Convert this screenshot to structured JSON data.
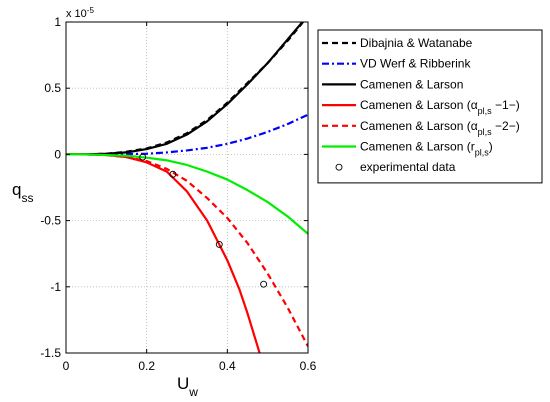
{
  "chart_data": {
    "type": "line",
    "xlabel": "U",
    "xlabel_sub": "w",
    "ylabel": "q",
    "ylabel_sub": "ss",
    "exponent_label": {
      "prefix": "x 10",
      "power": "-5"
    },
    "xlim": [
      0,
      0.6
    ],
    "ylim": [
      -1.5,
      1
    ],
    "xticks": [
      0,
      0.2,
      0.4,
      0.6
    ],
    "xtick_labels": [
      "0",
      "0.2",
      "0.4",
      "0.6"
    ],
    "yticks": [
      -1.5,
      -1,
      -0.5,
      0,
      0.5,
      1
    ],
    "ytick_labels": [
      "-1.5",
      "-1",
      "-0.5",
      "0",
      "0.5",
      "1"
    ],
    "grid": true,
    "grid_style": "dotted",
    "legend_position": "outside-top-right",
    "series": [
      {
        "name": "Dibajnia & Watanabe",
        "color": "#000000",
        "dash": "dashed",
        "kind": "line",
        "x": [
          0,
          0.05,
          0.1,
          0.15,
          0.2,
          0.25,
          0.3,
          0.35,
          0.4,
          0.45,
          0.5,
          0.55,
          0.58,
          0.6
        ],
        "y": [
          0,
          0,
          0.005,
          0.02,
          0.045,
          0.09,
          0.16,
          0.26,
          0.39,
          0.54,
          0.69,
          0.86,
          0.97,
          1.05
        ]
      },
      {
        "name": "VD Werf & Ribberink",
        "color": "#0000ff",
        "dash": "dashdot",
        "kind": "line",
        "x": [
          0,
          0.1,
          0.2,
          0.25,
          0.3,
          0.35,
          0.4,
          0.45,
          0.5,
          0.55,
          0.6
        ],
        "y": [
          0,
          0,
          0.005,
          0.015,
          0.03,
          0.05,
          0.08,
          0.12,
          0.17,
          0.23,
          0.3
        ]
      },
      {
        "name": "Camenen & Larson",
        "color": "#000000",
        "dash": "solid",
        "kind": "line",
        "x": [
          0,
          0.05,
          0.1,
          0.15,
          0.2,
          0.25,
          0.3,
          0.35,
          0.4,
          0.45,
          0.5,
          0.55,
          0.6
        ],
        "y": [
          0,
          0,
          0.005,
          0.015,
          0.04,
          0.08,
          0.15,
          0.25,
          0.38,
          0.53,
          0.69,
          0.87,
          1.05
        ]
      },
      {
        "name": "Camenen & Larson (α",
        "name_sub": "pl,s",
        "name_tail": " −1−)",
        "color": "#ff0000",
        "dash": "solid",
        "kind": "line",
        "x": [
          0,
          0.05,
          0.1,
          0.15,
          0.2,
          0.25,
          0.3,
          0.35,
          0.4,
          0.43,
          0.45,
          0.48
        ],
        "y": [
          0,
          0,
          -0.005,
          -0.02,
          -0.06,
          -0.13,
          -0.28,
          -0.5,
          -0.8,
          -1.02,
          -1.2,
          -1.5
        ]
      },
      {
        "name": "Camenen & Larson (α",
        "name_sub": "pl,s",
        "name_tail": " −2−)",
        "color": "#ff0000",
        "dash": "dashed",
        "kind": "line",
        "x": [
          0,
          0.05,
          0.1,
          0.15,
          0.2,
          0.25,
          0.3,
          0.35,
          0.4,
          0.45,
          0.5,
          0.55,
          0.6
        ],
        "y": [
          0,
          0,
          -0.005,
          -0.02,
          -0.05,
          -0.11,
          -0.2,
          -0.33,
          -0.48,
          -0.67,
          -0.9,
          -1.16,
          -1.45
        ]
      },
      {
        "name": "Camenen & Larson (r",
        "name_sub": "pl,s",
        "name_tail": ")",
        "color": "#00ee00",
        "dash": "solid",
        "kind": "line",
        "x": [
          0,
          0.05,
          0.1,
          0.15,
          0.2,
          0.25,
          0.3,
          0.35,
          0.4,
          0.45,
          0.5,
          0.55,
          0.6
        ],
        "y": [
          0,
          0,
          -0.005,
          -0.01,
          -0.025,
          -0.045,
          -0.08,
          -0.13,
          -0.19,
          -0.27,
          -0.36,
          -0.47,
          -0.6
        ]
      },
      {
        "name": "experimental data",
        "color": "#000000",
        "kind": "markers",
        "marker": "circle",
        "x": [
          0.19,
          0.265,
          0.38,
          0.49
        ],
        "y": [
          -0.02,
          -0.15,
          -0.68,
          -0.98
        ]
      }
    ]
  }
}
